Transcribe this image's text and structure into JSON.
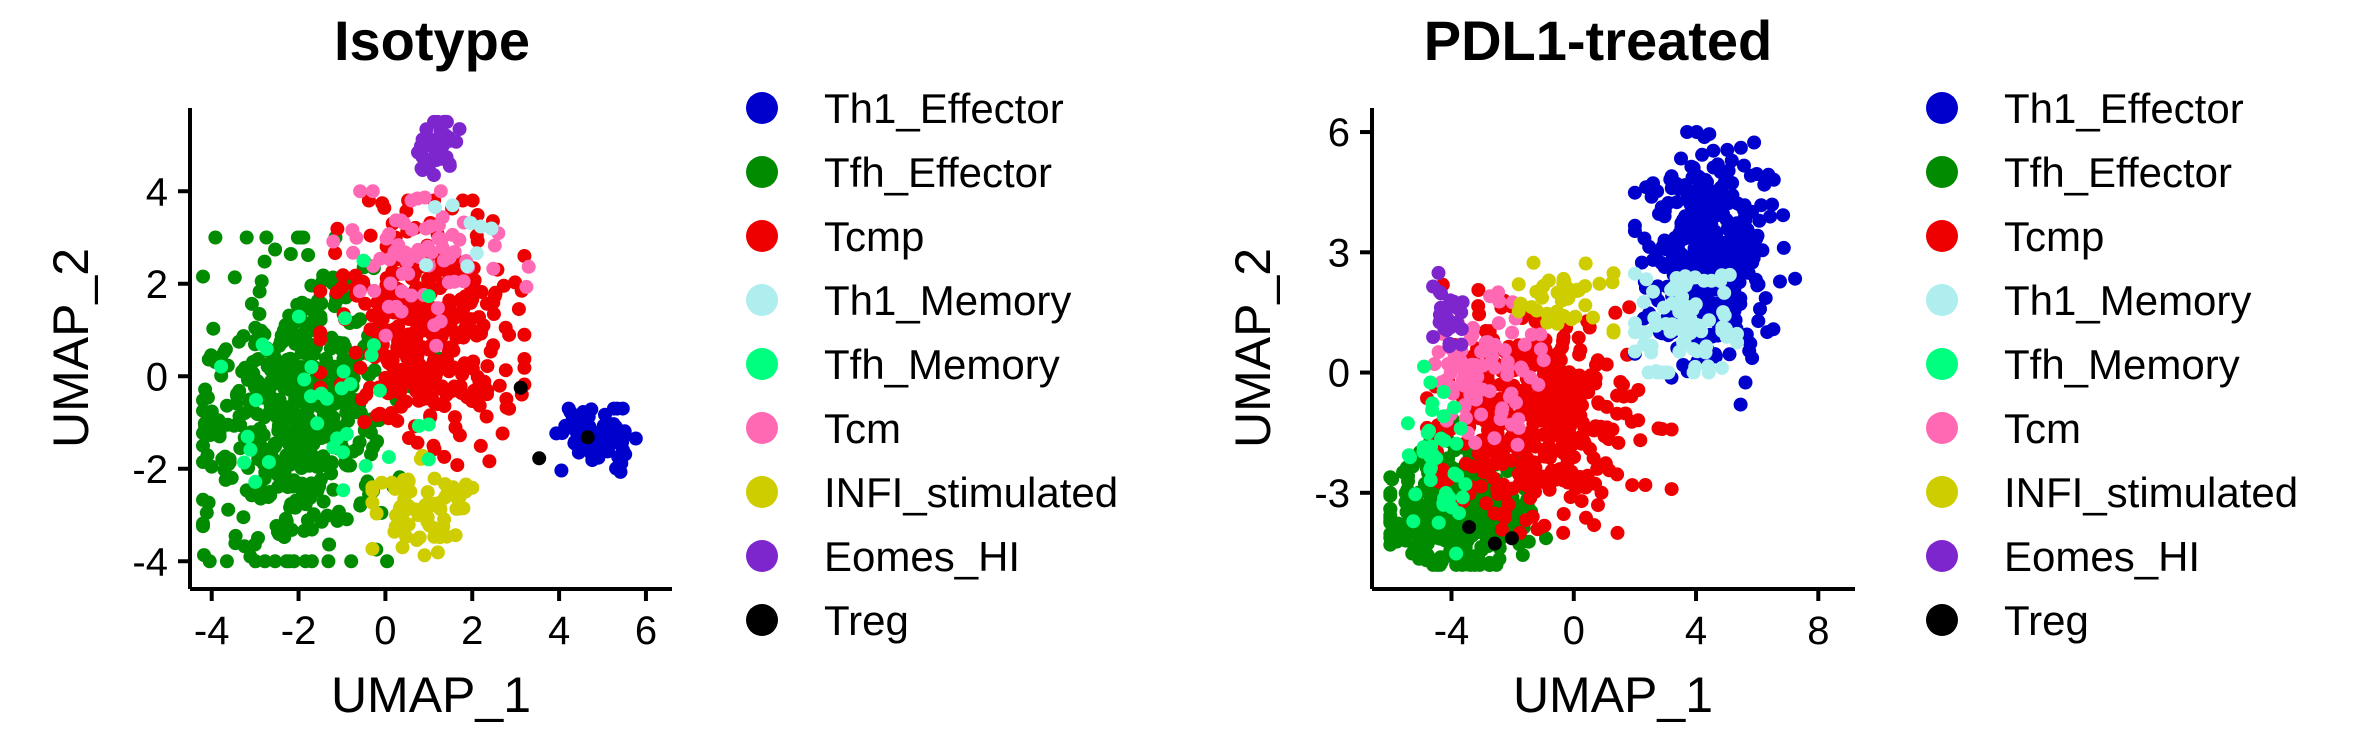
{
  "chart_data": [
    {
      "type": "scatter",
      "title": "Isotype",
      "xlabel": "UMAP_1",
      "ylabel": "UMAP_2",
      "xlim": [
        -4.5,
        6.6
      ],
      "ylim": [
        -4.6,
        5.8
      ],
      "xticks": [
        "-4",
        "-2",
        "0",
        "2",
        "4",
        "6"
      ],
      "yticks": [
        "-4",
        "-2",
        "0",
        "2",
        "4"
      ],
      "legend_position": "right",
      "legend": [
        {
          "name": "Th1_Effector",
          "color": "#0000CD"
        },
        {
          "name": "Tfh_Effector",
          "color": "#008B00"
        },
        {
          "name": "Tcmp",
          "color": "#EE0000"
        },
        {
          "name": "Th1_Memory",
          "color": "#AEEEEE"
        },
        {
          "name": "Tfh_Memory",
          "color": "#00FF7F"
        },
        {
          "name": "Tcm",
          "color": "#FF69B4"
        },
        {
          "name": "INFI_stimulated",
          "color": "#CDCD00"
        },
        {
          "name": "Eomes_HI",
          "color": "#7D26CD"
        },
        {
          "name": "Treg",
          "color": "#000000"
        }
      ],
      "clusters": [
        {
          "name": "Tfh_Effector",
          "n": 520,
          "center": [
            -2.0,
            -0.8
          ],
          "spread": [
            1.1,
            1.6
          ],
          "xrange": [
            -4.2,
            1.2
          ],
          "yrange": [
            -4.0,
            3.0
          ]
        },
        {
          "name": "Tcmp",
          "n": 360,
          "center": [
            0.9,
            1.0
          ],
          "spread": [
            1.0,
            1.2
          ],
          "xrange": [
            -1.5,
            3.2
          ],
          "yrange": [
            -2.5,
            3.8
          ]
        },
        {
          "name": "Tcm",
          "n": 70,
          "center": [
            0.8,
            2.4
          ],
          "spread": [
            1.0,
            0.8
          ],
          "xrange": [
            -1.2,
            3.3
          ],
          "yrange": [
            -1.0,
            4.0
          ]
        },
        {
          "name": "INFI_stimulated",
          "n": 70,
          "center": [
            0.9,
            -2.9
          ],
          "spread": [
            0.55,
            0.5
          ],
          "xrange": [
            -0.3,
            2.0
          ],
          "yrange": [
            -3.9,
            -1.7
          ]
        },
        {
          "name": "Eomes_HI",
          "n": 45,
          "center": [
            1.2,
            4.9
          ],
          "spread": [
            0.25,
            0.35
          ],
          "xrange": [
            0.6,
            1.8
          ],
          "yrange": [
            4.2,
            5.5
          ]
        },
        {
          "name": "Th1_Effector",
          "n": 70,
          "center": [
            4.9,
            -1.4
          ],
          "spread": [
            0.5,
            0.35
          ],
          "xrange": [
            3.9,
            5.9
          ],
          "yrange": [
            -2.1,
            -0.7
          ]
        },
        {
          "name": "Tfh_Memory",
          "n": 35,
          "center": [
            -1.3,
            -0.5
          ],
          "spread": [
            1.2,
            1.4
          ],
          "xrange": [
            -3.8,
            1.0
          ],
          "yrange": [
            -3.8,
            2.5
          ]
        },
        {
          "name": "Th1_Memory",
          "n": 8,
          "center": [
            1.8,
            3.3
          ],
          "spread": [
            0.7,
            0.6
          ],
          "xrange": [
            0.5,
            4.5
          ],
          "yrange": [
            -1.5,
            4.0
          ]
        },
        {
          "name": "Treg",
          "n": 3,
          "center": [
            3.5,
            -1.0
          ],
          "spread": [
            1.0,
            0.5
          ],
          "xrange": [
            1.5,
            5.0
          ],
          "yrange": [
            -2.0,
            0.0
          ]
        }
      ]
    },
    {
      "type": "scatter",
      "title": "PDL1-treated",
      "xlabel": "UMAP_1",
      "ylabel": "UMAP_2",
      "xlim": [
        -6.6,
        9.2
      ],
      "ylim": [
        -5.4,
        6.6
      ],
      "xticks": [
        "-4",
        "0",
        "4",
        "8"
      ],
      "yticks": [
        "-3",
        "0",
        "3",
        "6"
      ],
      "legend_position": "right",
      "legend": [
        {
          "name": "Th1_Effector",
          "color": "#0000CD"
        },
        {
          "name": "Tfh_Effector",
          "color": "#008B00"
        },
        {
          "name": "Tcmp",
          "color": "#EE0000"
        },
        {
          "name": "Th1_Memory",
          "color": "#AEEEEE"
        },
        {
          "name": "Tfh_Memory",
          "color": "#00FF7F"
        },
        {
          "name": "Tcm",
          "color": "#FF69B4"
        },
        {
          "name": "INFI_stimulated",
          "color": "#CDCD00"
        },
        {
          "name": "Eomes_HI",
          "color": "#7D26CD"
        },
        {
          "name": "Treg",
          "color": "#000000"
        }
      ],
      "clusters": [
        {
          "name": "Tfh_Effector",
          "n": 330,
          "center": [
            -3.8,
            -3.4
          ],
          "spread": [
            1.1,
            0.8
          ],
          "xrange": [
            -6.0,
            -0.8
          ],
          "yrange": [
            -4.8,
            -1.0
          ]
        },
        {
          "name": "Tcmp",
          "n": 420,
          "center": [
            -1.2,
            -1.0
          ],
          "spread": [
            1.5,
            1.3
          ],
          "xrange": [
            -4.8,
            3.2
          ],
          "yrange": [
            -4.0,
            2.2
          ]
        },
        {
          "name": "Tcm",
          "n": 90,
          "center": [
            -3.0,
            0.0
          ],
          "spread": [
            0.9,
            0.9
          ],
          "xrange": [
            -5.0,
            -0.5
          ],
          "yrange": [
            -2.0,
            2.0
          ]
        },
        {
          "name": "Tfh_Memory",
          "n": 40,
          "center": [
            -4.4,
            -2.0
          ],
          "spread": [
            0.5,
            1.3
          ],
          "xrange": [
            -5.6,
            -2.0
          ],
          "yrange": [
            -4.6,
            0.5
          ]
        },
        {
          "name": "INFI_stimulated",
          "n": 40,
          "center": [
            -0.5,
            2.0
          ],
          "spread": [
            0.9,
            0.4
          ],
          "xrange": [
            -1.8,
            1.3
          ],
          "yrange": [
            1.0,
            3.0
          ]
        },
        {
          "name": "Eomes_HI",
          "n": 25,
          "center": [
            -4.1,
            1.6
          ],
          "spread": [
            0.25,
            0.5
          ],
          "xrange": [
            -4.6,
            -3.5
          ],
          "yrange": [
            0.6,
            2.6
          ]
        },
        {
          "name": "Th1_Effector",
          "n": 420,
          "center": [
            4.4,
            2.9
          ],
          "spread": [
            1.0,
            1.3
          ],
          "xrange": [
            2.0,
            8.2
          ],
          "yrange": [
            -0.8,
            6.0
          ]
        },
        {
          "name": "Th1_Memory",
          "n": 80,
          "center": [
            3.6,
            1.2
          ],
          "spread": [
            0.9,
            0.8
          ],
          "xrange": [
            2.0,
            5.5
          ],
          "yrange": [
            0.0,
            4.5
          ]
        },
        {
          "name": "Treg",
          "n": 3,
          "center": [
            -2.5,
            -4.0
          ],
          "spread": [
            0.8,
            0.3
          ],
          "xrange": [
            -4.0,
            -1.0
          ],
          "yrange": [
            -4.6,
            -3.4
          ]
        }
      ]
    }
  ]
}
